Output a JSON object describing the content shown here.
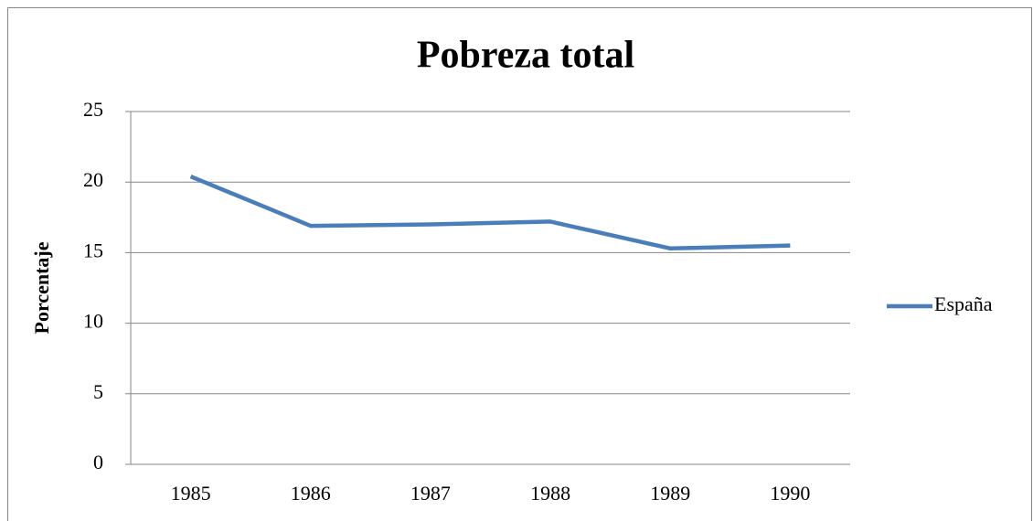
{
  "chart_data": {
    "type": "line",
    "title": "Pobreza total",
    "y_label": "Porcentaje",
    "categories": [
      "1985",
      "1986",
      "1987",
      "1988",
      "1989",
      "1990"
    ],
    "series": [
      {
        "name": "España",
        "color": "#4a7ebb",
        "values": [
          20.4,
          16.9,
          17.0,
          17.2,
          15.3,
          15.5
        ]
      }
    ],
    "ylim": [
      0,
      25
    ],
    "yticks": [
      0,
      5,
      10,
      15,
      20,
      25
    ],
    "grid": true,
    "legend": "right"
  }
}
